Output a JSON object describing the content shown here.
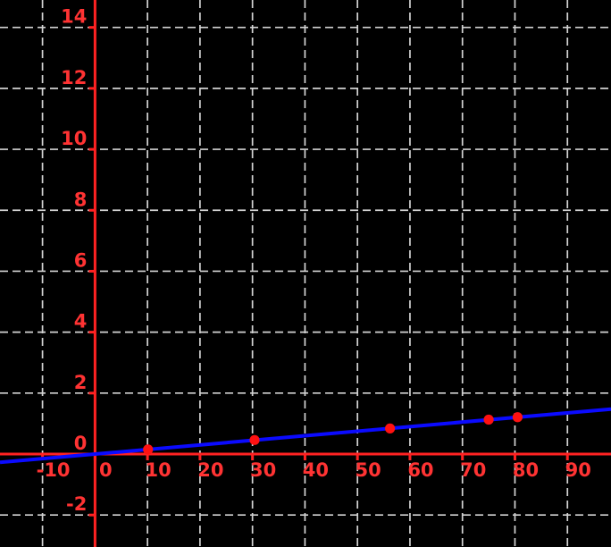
{
  "figure": {
    "kind": "xy-plot-black-background",
    "background_color": "#000000"
  },
  "chart_data": {
    "type": "line",
    "xlim": [
      -18.1,
      98.3
    ],
    "ylim": [
      -3.05,
      14.9
    ],
    "x_ticks": [
      -10,
      0,
      10,
      20,
      30,
      40,
      50,
      60,
      70,
      80,
      90
    ],
    "x_tick_labels": [
      "-10",
      "0",
      "10",
      "20",
      "30",
      "40",
      "50",
      "60",
      "70",
      "80",
      "90"
    ],
    "y_ticks": [
      -2,
      0,
      2,
      4,
      6,
      8,
      10,
      12,
      14
    ],
    "y_tick_labels": [
      "-2",
      "0",
      "2",
      "4",
      "6",
      "8",
      "10",
      "12",
      "14"
    ],
    "grid": {
      "visible": true,
      "style": "dashed",
      "color": "#d3d3d3"
    },
    "axes": {
      "color": "#ff2222",
      "x_axis_at_y": 0,
      "y_axis_at_x": 0,
      "tick_label_color": "#ff3333"
    },
    "series": [
      {
        "name": "line",
        "type": "line",
        "color": "#0b0bff",
        "slope": 0.015,
        "intercept": 0,
        "x_start": -18.1,
        "x_end": 98.3
      },
      {
        "name": "points",
        "type": "scatter",
        "color": "#ff1111",
        "points": [
          [
            10.1,
            0.15
          ],
          [
            30.4,
            0.46
          ],
          [
            56.2,
            0.84
          ],
          [
            75.0,
            1.13
          ],
          [
            80.5,
            1.21
          ]
        ]
      }
    ]
  }
}
